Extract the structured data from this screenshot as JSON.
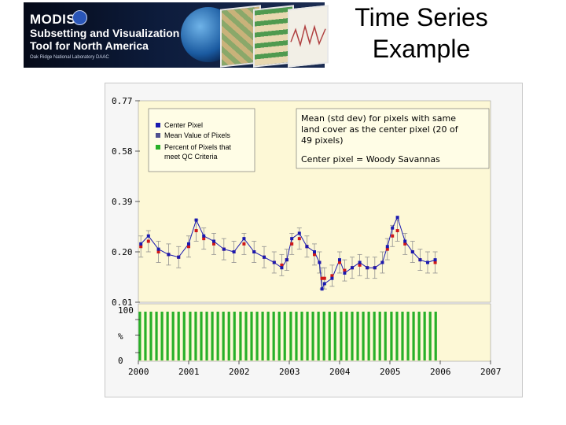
{
  "banner": {
    "modis": "MODIS",
    "line2": "Subsetting and Visualization",
    "line3": "Tool for North America",
    "credit": "Oak Ridge National Laboratory DAAC"
  },
  "slide_title_line1": "Time Series",
  "slide_title_line2": "Example",
  "note": {
    "line1": "Mean (std dev) for pixels with  same",
    "line2": "land cover as the center pixel (20 of",
    "line3": "49 pixels)",
    "line4": "Center pixel = Woody Savannas"
  },
  "chart_data": {
    "type": "line",
    "x_ticks": [
      "2000",
      "2001",
      "2002",
      "2003",
      "2004",
      "2005",
      "2006",
      "2007"
    ],
    "y_ticks": [
      "0.01",
      "0.20",
      "0.39",
      "0.58",
      "0.77"
    ],
    "ylim": [
      0.01,
      0.77
    ],
    "xlim": [
      2000,
      2007
    ],
    "pct_ticks": [
      "100",
      "%",
      "0"
    ],
    "legend": [
      {
        "label": "Center Pixel",
        "color": "#1a1ab0"
      },
      {
        "label": "Mean Value of Pixels",
        "color": "#505090"
      },
      {
        "label": "Percent of Pixels that meet QC Criteria",
        "color": "#28b028"
      }
    ],
    "colors": {
      "center": "#1a1ab0",
      "mean": "#d01818",
      "errorbar": "#909090",
      "qc": "#28b028",
      "plot_bg": "#fdf8d6"
    },
    "series": [
      {
        "name": "Center Pixel",
        "x": [
          2000.05,
          2000.2,
          2000.4,
          2000.6,
          2000.8,
          2001.0,
          2001.15,
          2001.3,
          2001.5,
          2001.7,
          2001.9,
          2002.1,
          2002.3,
          2002.5,
          2002.7,
          2002.85,
          2002.95,
          2003.05,
          2003.2,
          2003.35,
          2003.5,
          2003.6,
          2003.65,
          2003.7,
          2003.85,
          2004.0,
          2004.1,
          2004.25,
          2004.4,
          2004.55,
          2004.7,
          2004.85,
          2004.95,
          2005.05,
          2005.15,
          2005.3,
          2005.45,
          2005.6,
          2005.75,
          2005.9
        ],
        "values": [
          0.23,
          0.26,
          0.21,
          0.19,
          0.18,
          0.23,
          0.32,
          0.26,
          0.24,
          0.21,
          0.2,
          0.25,
          0.2,
          0.18,
          0.16,
          0.14,
          0.17,
          0.25,
          0.27,
          0.22,
          0.2,
          0.16,
          0.06,
          0.08,
          0.1,
          0.17,
          0.12,
          0.14,
          0.16,
          0.14,
          0.14,
          0.16,
          0.22,
          0.29,
          0.33,
          0.24,
          0.2,
          0.17,
          0.16,
          0.17
        ]
      },
      {
        "name": "Mean Value of Pixels",
        "x": [
          2000.05,
          2000.2,
          2000.4,
          2000.6,
          2000.8,
          2001.0,
          2001.15,
          2001.3,
          2001.5,
          2001.7,
          2001.9,
          2002.1,
          2002.3,
          2002.5,
          2002.7,
          2002.85,
          2002.95,
          2003.05,
          2003.2,
          2003.35,
          2003.5,
          2003.6,
          2003.65,
          2003.7,
          2003.85,
          2004.0,
          2004.1,
          2004.25,
          2004.4,
          2004.55,
          2004.7,
          2004.85,
          2004.95,
          2005.05,
          2005.15,
          2005.3,
          2005.45,
          2005.6,
          2005.75,
          2005.9
        ],
        "values": [
          0.22,
          0.24,
          0.2,
          0.19,
          0.18,
          0.22,
          0.28,
          0.25,
          0.23,
          0.21,
          0.2,
          0.23,
          0.2,
          0.18,
          0.16,
          0.15,
          0.17,
          0.23,
          0.25,
          0.22,
          0.19,
          0.16,
          0.1,
          0.1,
          0.11,
          0.16,
          0.13,
          0.14,
          0.15,
          0.14,
          0.14,
          0.16,
          0.21,
          0.26,
          0.28,
          0.23,
          0.2,
          0.17,
          0.16,
          0.16
        ]
      }
    ],
    "qc_percent": {
      "bars": [
        2000.03,
        2000.14,
        2000.25,
        2000.36,
        2000.47,
        2000.58,
        2000.69,
        2000.8,
        2000.91,
        2001.03,
        2001.14,
        2001.25,
        2001.36,
        2001.47,
        2001.58,
        2001.69,
        2001.8,
        2001.91,
        2002.03,
        2002.14,
        2002.25,
        2002.36,
        2002.47,
        2002.58,
        2002.69,
        2002.8,
        2002.91,
        2003.03,
        2003.14,
        2003.25,
        2003.36,
        2003.47,
        2003.58,
        2003.69,
        2003.8,
        2003.91,
        2004.03,
        2004.14,
        2004.25,
        2004.36,
        2004.47,
        2004.58,
        2004.69,
        2004.8,
        2004.91,
        2005.03,
        2005.14,
        2005.25,
        2005.36,
        2005.47,
        2005.58,
        2005.69,
        2005.8,
        2005.91
      ],
      "value": 100
    }
  }
}
